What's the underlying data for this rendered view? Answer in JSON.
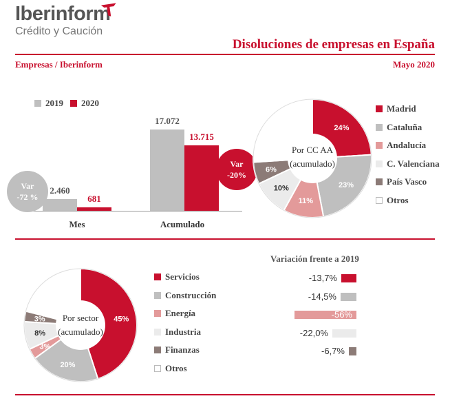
{
  "brand": {
    "name": "Iberinform",
    "tagline": "Crédito y Caución"
  },
  "header": {
    "title": "Disoluciones de empresas en España",
    "source": "Empresas / Iberinform",
    "date": "Mayo 2020"
  },
  "colors": {
    "accent": "#c8102e",
    "grey": "#bfbfbf",
    "pink": "#e39a9a",
    "light": "#ebebeb",
    "brown": "#8c7b77",
    "white": "#ffffff"
  },
  "chart_data": [
    {
      "type": "bar",
      "legend": [
        "2019",
        "2020"
      ],
      "categories": [
        "Mes",
        "Acumulado"
      ],
      "series": [
        {
          "name": "2019",
          "values": [
            2460,
            17072
          ],
          "labels": [
            "2.460",
            "17.072"
          ]
        },
        {
          "name": "2020",
          "values": [
            681,
            13715
          ],
          "labels": [
            "681",
            "13.715"
          ]
        }
      ],
      "annotations": [
        {
          "category": "Mes",
          "line1": "Var",
          "line2": "-72 %"
        },
        {
          "category": "Acumulado",
          "line1": "Var",
          "line2": "-20%"
        }
      ]
    },
    {
      "type": "pie",
      "title_lines": [
        "Por CC AA",
        "(acumulado)"
      ],
      "slices": [
        {
          "label": "Madrid",
          "value": 24,
          "display": "24%",
          "color": "#c8102e"
        },
        {
          "label": "Cataluña",
          "value": 23,
          "display": "23%",
          "color": "#bfbfbf"
        },
        {
          "label": "Andalucía",
          "value": 11,
          "display": "11%",
          "color": "#e39a9a"
        },
        {
          "label": "C. Valenciana",
          "value": 10,
          "display": "10%",
          "color": "#ebebeb"
        },
        {
          "label": "País Vasco",
          "value": 6,
          "display": "6%",
          "color": "#8c7b77"
        },
        {
          "label": "Otros",
          "value": 26,
          "display": "",
          "color": "#ffffff"
        }
      ]
    },
    {
      "type": "pie",
      "title_lines": [
        "Por sector",
        "(acumulado)"
      ],
      "slices": [
        {
          "label": "Servicios",
          "value": 45,
          "display": "45%",
          "color": "#c8102e"
        },
        {
          "label": "Construcción",
          "value": 20,
          "display": "20%",
          "color": "#bfbfbf"
        },
        {
          "label": "Energía",
          "value": 3,
          "display": "3%",
          "color": "#e39a9a"
        },
        {
          "label": "Industria",
          "value": 8,
          "display": "8%",
          "color": "#ebebeb"
        },
        {
          "label": "Finanzas",
          "value": 3,
          "display": "3%",
          "color": "#8c7b77"
        },
        {
          "label": "Otros",
          "value": 21,
          "display": "",
          "color": "#ffffff"
        }
      ]
    },
    {
      "type": "bar",
      "title": "Variación frente a 2019",
      "categories": [
        "Servicios",
        "Construcción",
        "Energía",
        "Industria",
        "Finanzas"
      ],
      "values": [
        -13.7,
        -14.5,
        -56,
        -22.0,
        -6.7
      ],
      "labels": [
        "-13,7%",
        "-14,5%",
        "-56%",
        "-22,0%",
        "-6,7%"
      ],
      "colors": [
        "#c8102e",
        "#bfbfbf",
        "#e39a9a",
        "#ebebeb",
        "#8c7b77"
      ]
    }
  ]
}
